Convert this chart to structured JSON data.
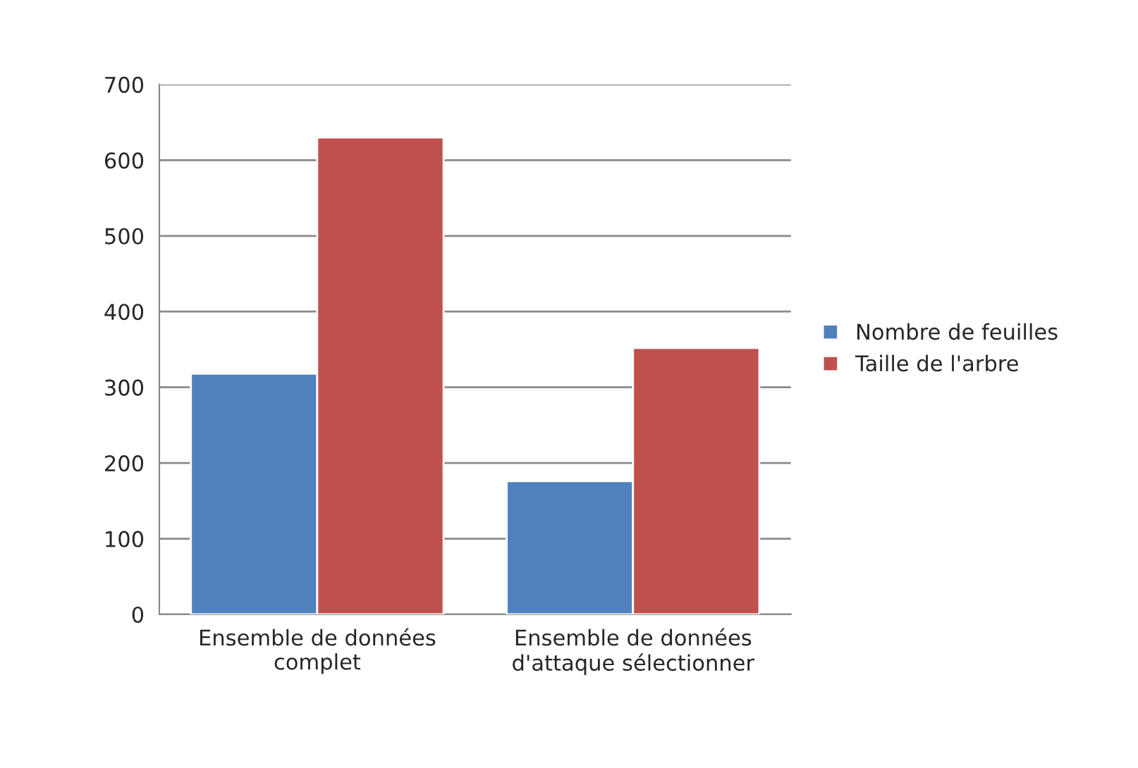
{
  "chart_data": {
    "type": "bar",
    "categories": [
      "Ensemble de données\ncomplet",
      "Ensemble de données\nd'attaque sélectionner"
    ],
    "series": [
      {
        "name": "Nombre de feuilles",
        "color": "#4f81bd",
        "values": [
          318,
          176
        ]
      },
      {
        "name": "Taille de l'arbre",
        "color": "#c0504d",
        "values": [
          630,
          352
        ]
      }
    ],
    "ylim": [
      0,
      700
    ],
    "yticks": [
      0,
      100,
      200,
      300,
      400,
      500,
      600,
      700
    ],
    "grid": "y",
    "legend": "right"
  }
}
